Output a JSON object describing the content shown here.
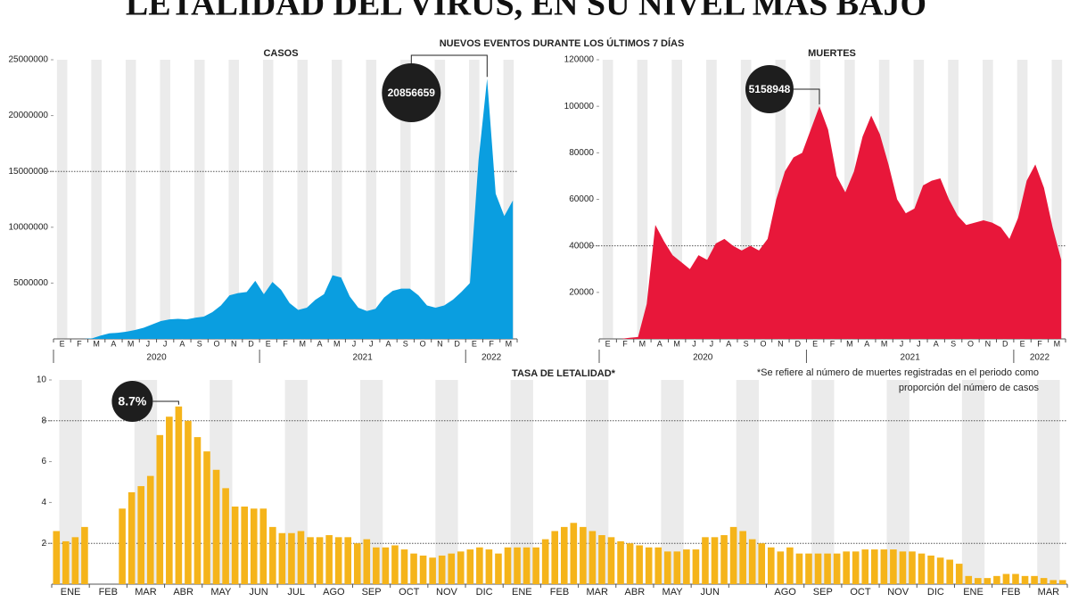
{
  "header": {
    "title": "LETALIDAD DEL VIRUS, EN SU NIVEL MÁS BAJO",
    "subtitle": "NUEVOS EVENTOS DURANTE LOS ÚLTIMOS 7 DÍAS"
  },
  "chart_data": [
    {
      "type": "area",
      "title": "CASOS",
      "color": "#0a9ee0",
      "categories": [
        "E",
        null,
        "F",
        null,
        "M",
        null,
        "A",
        null,
        "M",
        null,
        "J",
        null,
        "J",
        null,
        "A",
        null,
        "S",
        null,
        "O",
        null,
        "N",
        null,
        "D",
        null,
        "E",
        null,
        "F",
        null,
        "M",
        null,
        "A",
        null,
        "M",
        null,
        "J",
        null,
        "J",
        null,
        "A",
        null,
        "S",
        null,
        "O",
        null,
        "N",
        null,
        "D",
        null,
        "E",
        null,
        "F",
        null,
        "M",
        null
      ],
      "years": [
        "2020",
        "2021",
        "2022"
      ],
      "values": [
        0,
        0,
        0,
        0,
        50000,
        300000,
        500000,
        550000,
        650000,
        800000,
        1000000,
        1300000,
        1600000,
        1750000,
        1800000,
        1750000,
        1900000,
        2000000,
        2400000,
        3000000,
        3900000,
        4100000,
        4200000,
        5200000,
        4000000,
        5100000,
        4400000,
        3200000,
        2600000,
        2800000,
        3500000,
        4000000,
        5700000,
        5500000,
        3800000,
        2800000,
        2500000,
        2700000,
        3700000,
        4300000,
        4500000,
        4500000,
        3900000,
        3000000,
        2800000,
        3000000,
        3500000,
        4200000,
        5000000,
        16000000,
        23300000,
        13000000,
        11000000,
        12400000
      ],
      "ylim": [
        0,
        25000000
      ],
      "yticks": [
        5000000,
        10000000,
        15000000,
        20000000,
        25000000
      ],
      "reference_lines": [
        15000000
      ],
      "annotation": 20856659
    },
    {
      "type": "area",
      "title": "MUERTES",
      "color": "#e8173a",
      "categories": [
        "E",
        null,
        "F",
        null,
        "M",
        null,
        "A",
        null,
        "M",
        null,
        "J",
        null,
        "J",
        null,
        "A",
        null,
        "S",
        null,
        "O",
        null,
        "N",
        null,
        "D",
        null,
        "E",
        null,
        "F",
        null,
        "M",
        null,
        "A",
        null,
        "M",
        null,
        "J",
        null,
        "J",
        null,
        "A",
        null,
        "S",
        null,
        "O",
        null,
        "N",
        null,
        "D",
        null,
        "E",
        null,
        "F",
        null,
        "M",
        null
      ],
      "years": [
        "2020",
        "2021",
        "2022"
      ],
      "values": [
        0,
        0,
        0,
        500,
        800,
        15000,
        49000,
        42000,
        36000,
        33000,
        30000,
        36000,
        34000,
        41000,
        43000,
        40000,
        38000,
        40000,
        38000,
        43000,
        60000,
        72000,
        78000,
        80000,
        90000,
        100000,
        90000,
        70000,
        63000,
        72000,
        87000,
        96000,
        88000,
        75000,
        60000,
        54000,
        56000,
        66000,
        68000,
        69000,
        60000,
        53000,
        49000,
        50000,
        51000,
        50000,
        48000,
        43000,
        52000,
        68000,
        75000,
        65000,
        48000,
        34000
      ],
      "ylim": [
        0,
        120000
      ],
      "yticks": [
        20000,
        40000,
        60000,
        80000,
        100000,
        120000
      ],
      "reference_lines": [
        40000
      ],
      "annotation": 5158948
    },
    {
      "type": "bar",
      "title": "TASA DE LETALIDAD*",
      "color": "#f5b41a",
      "note": [
        "*Se refiere al número de muertes registradas en el periodo como",
        "proporción del número de casos"
      ],
      "categories": [
        "ENE",
        null,
        null,
        null,
        "FEB",
        null,
        null,
        null,
        "MAR",
        null,
        null,
        null,
        "ABR",
        null,
        null,
        null,
        "MAY",
        null,
        null,
        null,
        "JUN",
        null,
        null,
        null,
        "JUL",
        null,
        null,
        null,
        "AGO",
        null,
        null,
        null,
        "SEP",
        null,
        null,
        null,
        "OCT",
        null,
        null,
        null,
        "NOV",
        null,
        null,
        null,
        "DIC",
        null,
        null,
        null,
        "ENE",
        null,
        null,
        null,
        "FEB",
        null,
        null,
        null,
        "MAR",
        null,
        null,
        null,
        "ABR",
        null,
        null,
        null,
        "MAY",
        null,
        null,
        null,
        "JUN",
        null,
        null,
        null,
        null,
        null,
        null,
        null,
        "AGO",
        null,
        null,
        null,
        "SEP",
        null,
        null,
        null,
        "OCT",
        null,
        null,
        null,
        "NOV",
        null,
        null,
        null,
        "DIC",
        null,
        null,
        null,
        "ENE",
        null,
        null,
        null,
        "FEB",
        null,
        null,
        null,
        "MAR",
        null,
        null,
        null
      ],
      "values": [
        2.6,
        2.1,
        2.3,
        2.8,
        null,
        null,
        null,
        3.7,
        4.5,
        4.8,
        5.3,
        7.3,
        8.2,
        8.7,
        8.0,
        7.2,
        6.5,
        5.6,
        4.7,
        3.8,
        3.8,
        3.7,
        3.7,
        2.8,
        2.5,
        2.5,
        2.6,
        2.3,
        2.3,
        2.4,
        2.3,
        2.3,
        2.0,
        2.2,
        1.8,
        1.8,
        1.9,
        1.7,
        1.5,
        1.4,
        1.3,
        1.4,
        1.5,
        1.6,
        1.7,
        1.8,
        1.7,
        1.5,
        1.8,
        1.8,
        1.8,
        1.8,
        2.2,
        2.6,
        2.8,
        3.0,
        2.8,
        2.6,
        2.4,
        2.3,
        2.1,
        2.0,
        1.9,
        1.8,
        1.8,
        1.6,
        1.6,
        1.7,
        1.7,
        2.3,
        2.3,
        2.4,
        2.8,
        2.6,
        2.2,
        2.0,
        1.8,
        1.6,
        1.8,
        1.5,
        1.5,
        1.5,
        1.5,
        1.5,
        1.6,
        1.6,
        1.7,
        1.7,
        1.7,
        1.7,
        1.6,
        1.6,
        1.5,
        1.4,
        1.3,
        1.2,
        1.0,
        0.4,
        0.3,
        0.3,
        0.4,
        0.5,
        0.5,
        0.4,
        0.4,
        0.3,
        0.2,
        0.2
      ],
      "ylim": [
        0,
        10
      ],
      "yticks": [
        2,
        4,
        6,
        8,
        10
      ],
      "reference_lines": [
        2,
        8
      ],
      "annotation": {
        "value": 8.7,
        "label": "8.7%"
      }
    }
  ]
}
